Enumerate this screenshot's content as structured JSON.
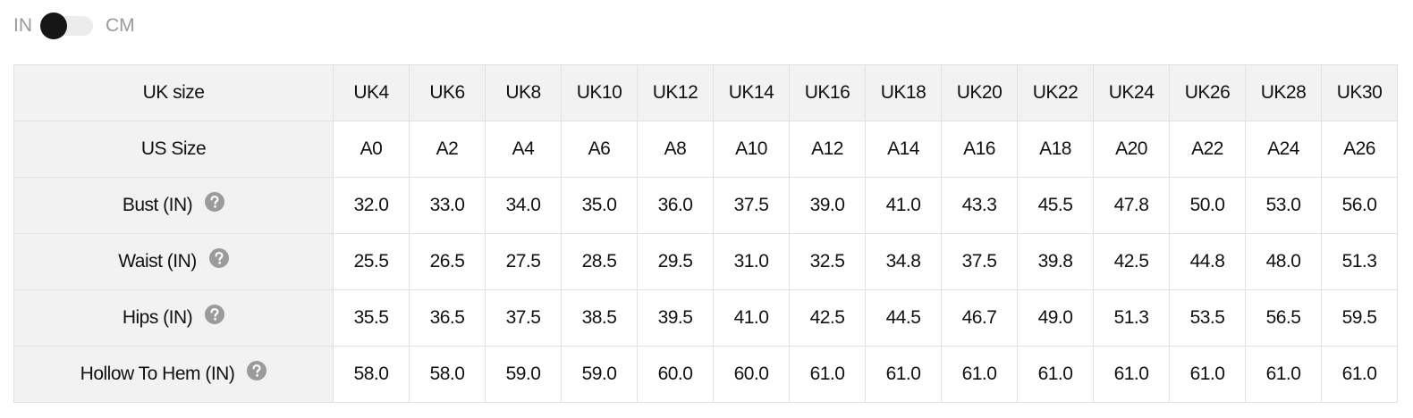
{
  "toggle": {
    "left": "IN",
    "right": "CM"
  },
  "table": {
    "header": {
      "label": "UK size",
      "cells": [
        "UK4",
        "UK6",
        "UK8",
        "UK10",
        "UK12",
        "UK14",
        "UK16",
        "UK18",
        "UK20",
        "UK22",
        "UK24",
        "UK26",
        "UK28",
        "UK30"
      ]
    },
    "rows": [
      {
        "label": "US Size",
        "help": false,
        "cells": [
          "A0",
          "A2",
          "A4",
          "A6",
          "A8",
          "A10",
          "A12",
          "A14",
          "A16",
          "A18",
          "A20",
          "A22",
          "A24",
          "A26"
        ]
      },
      {
        "label": "Bust (IN)",
        "help": true,
        "cells": [
          "32.0",
          "33.0",
          "34.0",
          "35.0",
          "36.0",
          "37.5",
          "39.0",
          "41.0",
          "43.3",
          "45.5",
          "47.8",
          "50.0",
          "53.0",
          "56.0"
        ]
      },
      {
        "label": "Waist (IN)",
        "help": true,
        "cells": [
          "25.5",
          "26.5",
          "27.5",
          "28.5",
          "29.5",
          "31.0",
          "32.5",
          "34.8",
          "37.5",
          "39.8",
          "42.5",
          "44.8",
          "48.0",
          "51.3"
        ]
      },
      {
        "label": "Hips (IN)",
        "help": true,
        "cells": [
          "35.5",
          "36.5",
          "37.5",
          "38.5",
          "39.5",
          "41.0",
          "42.5",
          "44.5",
          "46.7",
          "49.0",
          "51.3",
          "53.5",
          "56.5",
          "59.5"
        ]
      },
      {
        "label": "Hollow To Hem (IN)",
        "help": true,
        "cells": [
          "58.0",
          "58.0",
          "59.0",
          "59.0",
          "60.0",
          "60.0",
          "61.0",
          "61.0",
          "61.0",
          "61.0",
          "61.0",
          "61.0",
          "61.0",
          "61.0"
        ]
      }
    ]
  }
}
